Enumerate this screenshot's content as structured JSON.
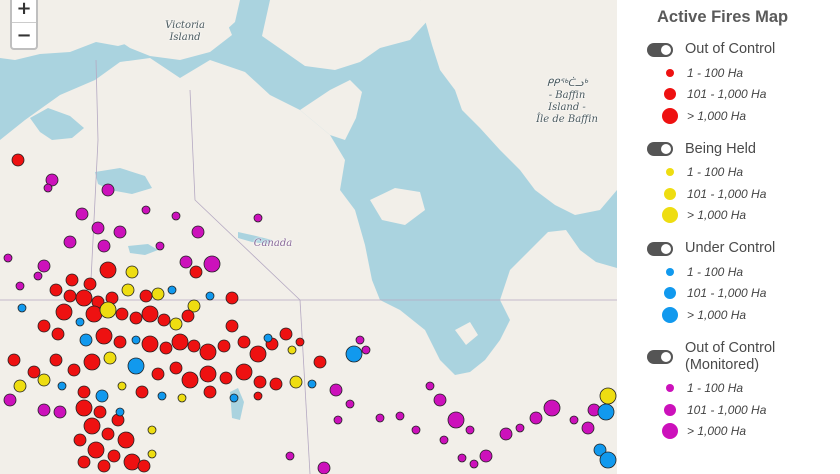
{
  "map": {
    "labels": {
      "victoria": [
        "Victoria",
        "Island"
      ],
      "baffin": [
        "ᑭᑭᖅᑖᓗᒃ",
        "- Baffin",
        "Island -",
        "Île de Baffin"
      ],
      "canada": "Canada"
    },
    "zoom": {
      "in_label": "+",
      "out_label": "−"
    }
  },
  "legend": {
    "title": "Active Fires Map",
    "sizes": [
      "1 - 100 Ha",
      "101 - 1,000 Ha",
      "> 1,000 Ha"
    ],
    "groups": [
      {
        "label": "Out of Control",
        "color": "#ee1111",
        "enabled": true
      },
      {
        "label": "Being Held",
        "color": "#eedd11",
        "enabled": true
      },
      {
        "label": "Under Control",
        "color": "#1199ee",
        "enabled": true
      },
      {
        "label": "Out of Control (Monitored)",
        "color": "#cc11bb",
        "enabled": true
      }
    ]
  }
}
